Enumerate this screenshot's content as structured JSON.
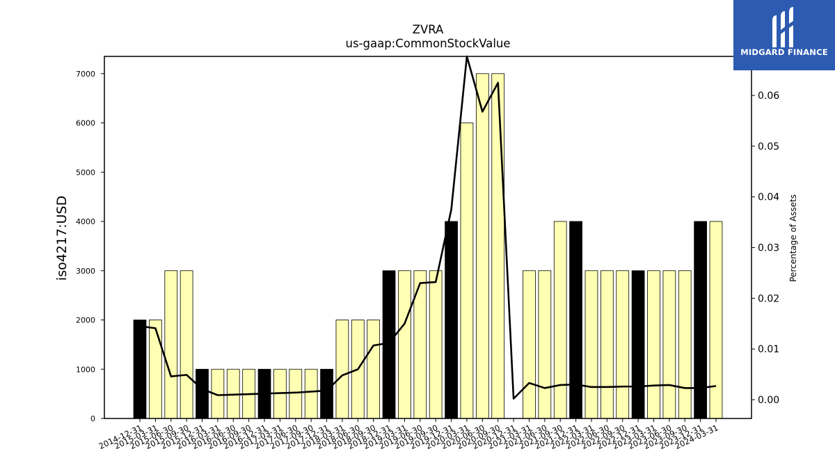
{
  "chart_data": {
    "type": "bar+line",
    "title": "ZVRA",
    "subtitle": "us-gaap:CommonStockValue",
    "ylabel": "iso4217:USD",
    "y2label": "Percentage of Assets",
    "ylim": [
      0,
      7350
    ],
    "y2lim": [
      -0.0037,
      0.0677
    ],
    "yticks": [
      0,
      1000,
      2000,
      3000,
      4000,
      5000,
      6000,
      7000
    ],
    "y2ticks": [
      "0.00",
      "0.01",
      "0.02",
      "0.03",
      "0.04",
      "0.05",
      "0.06"
    ],
    "categories": [
      "2014-12-31",
      "2015-03-31",
      "2015-06-30",
      "2015-09-30",
      "2015-12-31",
      "2016-03-31",
      "2016-06-30",
      "2016-09-30",
      "2016-12-31",
      "2017-03-31",
      "2017-06-30",
      "2017-09-30",
      "2017-12-31",
      "2018-03-31",
      "2018-06-30",
      "2018-09-30",
      "2018-12-31",
      "2019-03-31",
      "2019-06-30",
      "2019-09-30",
      "2019-12-31",
      "2020-03-31",
      "2020-06-30",
      "2020-09-30",
      "2020-12-31",
      "2021-03-31",
      "2021-06-30",
      "2021-09-30",
      "2021-12-31",
      "2022-03-31",
      "2022-06-30",
      "2022-09-30",
      "2022-12-31",
      "2023-03-31",
      "2023-06-30",
      "2023-09-30",
      "2023-12-31",
      "2024-03-31"
    ],
    "bar_values": [
      2000,
      2000,
      3000,
      3000,
      1000,
      1000,
      1000,
      1000,
      1000,
      1000,
      1000,
      1000,
      1000,
      2000,
      2000,
      2000,
      3000,
      3000,
      3000,
      3000,
      4000,
      6000,
      7000,
      7000,
      null,
      3000,
      3000,
      4000,
      4000,
      3000,
      3000,
      3000,
      3000,
      3000,
      3000,
      3000,
      4000,
      4000
    ],
    "bar_highlight": [
      true,
      false,
      false,
      false,
      true,
      false,
      false,
      false,
      true,
      false,
      false,
      false,
      true,
      false,
      false,
      false,
      true,
      false,
      false,
      false,
      true,
      false,
      false,
      false,
      true,
      false,
      false,
      false,
      true,
      false,
      false,
      false,
      true,
      false,
      false,
      false,
      true,
      false
    ],
    "line_values": [
      0.0145,
      0.0141,
      0.0046,
      0.0049,
      0.0021,
      0.0009,
      0.001,
      0.0011,
      0.0012,
      0.0013,
      0.0014,
      0.0016,
      0.0018,
      0.0048,
      0.006,
      0.0107,
      0.0112,
      0.015,
      0.023,
      0.0232,
      0.0375,
      0.0677,
      0.0568,
      0.0625,
      0.0002,
      0.0033,
      0.0023,
      0.0029,
      0.003,
      0.0025,
      0.0025,
      0.0026,
      0.0026,
      0.0028,
      0.0029,
      0.0023,
      0.0023,
      0.0027
    ],
    "colors": {
      "bar": "#ffffb3",
      "bar_highlight": "#000000",
      "bar_edge": "#000000",
      "line": "#000000"
    },
    "legend": "none",
    "grid": false
  },
  "logo": {
    "text": "MIDGARD FINANCE"
  }
}
